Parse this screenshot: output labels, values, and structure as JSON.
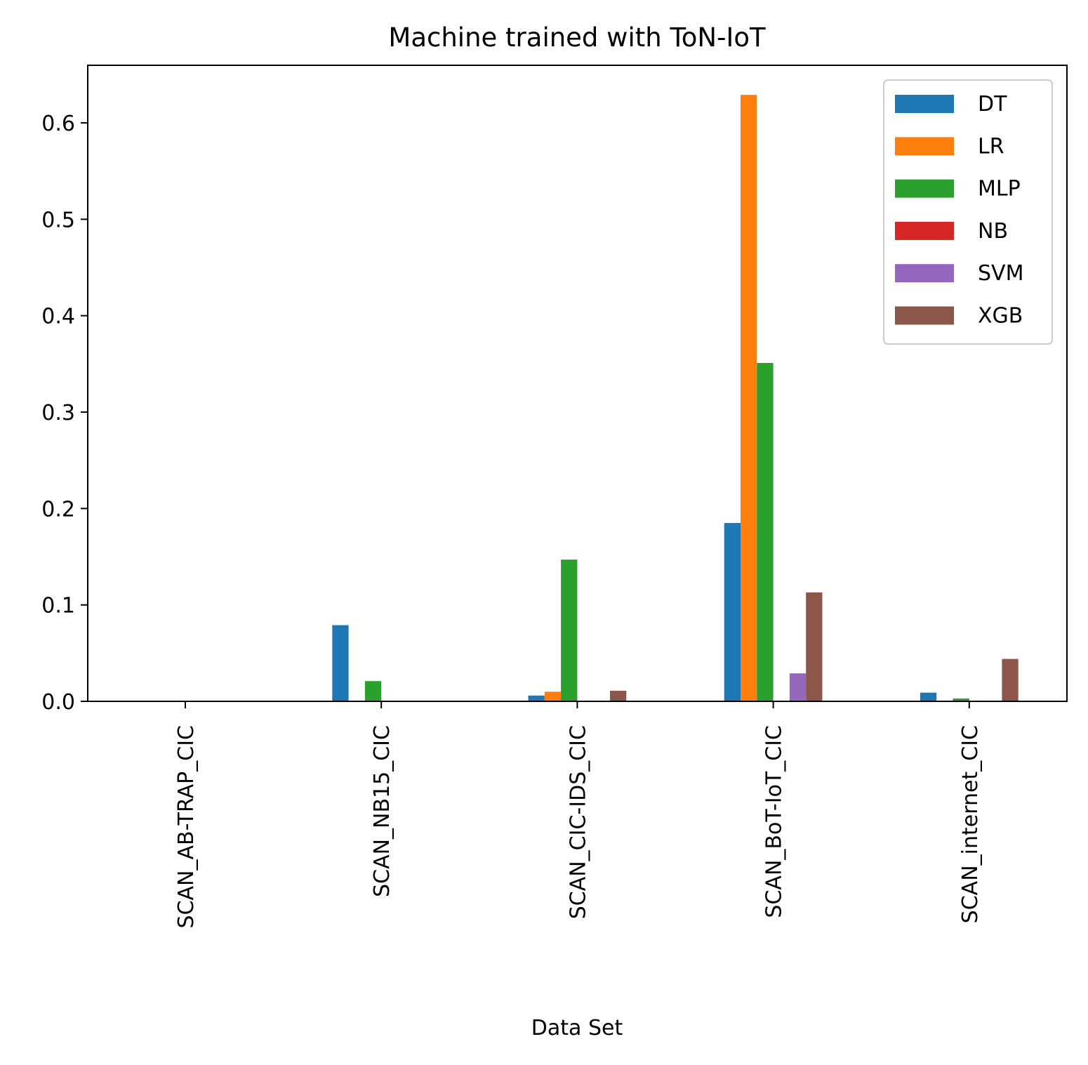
{
  "chart_data": {
    "type": "bar",
    "title": "Machine trained with ToN-IoT",
    "xlabel": "Data Set",
    "ylabel": "",
    "ylim": [
      0,
      0.66
    ],
    "yticks": [
      0.0,
      0.1,
      0.2,
      0.3,
      0.4,
      0.5,
      0.6
    ],
    "ytick_labels": [
      "0.0",
      "0.1",
      "0.2",
      "0.3",
      "0.4",
      "0.5",
      "0.6"
    ],
    "grid": false,
    "legend_position": "top-right",
    "categories": [
      "SCAN_AB-TRAP_CIC",
      "SCAN_NB15_CIC",
      "SCAN_CIC-IDS_CIC",
      "SCAN_BoT-IoT_CIC",
      "SCAN_internet_CIC"
    ],
    "series": [
      {
        "name": "DT",
        "color": "#1f77b4",
        "values": [
          0.0,
          0.079,
          0.006,
          0.185,
          0.009
        ]
      },
      {
        "name": "LR",
        "color": "#ff7f0e",
        "values": [
          0.0,
          0.0,
          0.01,
          0.629,
          0.0
        ]
      },
      {
        "name": "MLP",
        "color": "#2ca02c",
        "values": [
          0.0,
          0.021,
          0.147,
          0.351,
          0.003
        ]
      },
      {
        "name": "NB",
        "color": "#d62728",
        "values": [
          0.0,
          0.0,
          0.0,
          0.0,
          0.0
        ]
      },
      {
        "name": "SVM",
        "color": "#9467bd",
        "values": [
          0.0,
          0.0,
          0.0,
          0.029,
          0.0
        ]
      },
      {
        "name": "XGB",
        "color": "#8c564b",
        "values": [
          0.0,
          0.0,
          0.011,
          0.113,
          0.044
        ]
      }
    ]
  }
}
